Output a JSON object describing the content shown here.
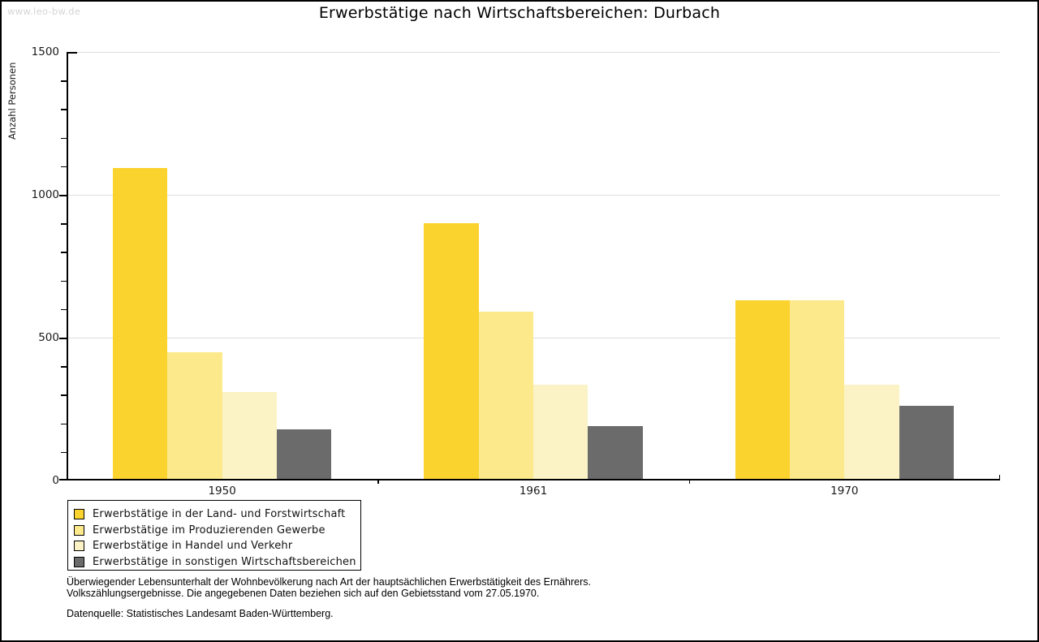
{
  "watermark": "www.leo-bw.de",
  "title": "Erwerbstätige nach Wirtschaftsbereichen: Durbach",
  "chart_data": {
    "type": "bar",
    "title": "Erwerbstätige nach Wirtschaftsbereichen: Durbach",
    "xlabel": "",
    "ylabel": "Anzahl Personen",
    "categories": [
      "1950",
      "1961",
      "1970"
    ],
    "series": [
      {
        "name": "Erwerbstätige in der Land- und Forstwirtschaft",
        "color": "#fbd32e",
        "values": [
          1095,
          900,
          630
        ]
      },
      {
        "name": "Erwerbstätige im Produzierenden Gewerbe",
        "color": "#fce98c",
        "values": [
          450,
          590,
          630
        ]
      },
      {
        "name": "Erwerbstätige in Handel und Verkehr",
        "color": "#fbf3c6",
        "values": [
          310,
          335,
          335
        ]
      },
      {
        "name": "Erwerbstätige in sonstigen Wirtschaftsbereichen",
        "color": "#6b6b6b",
        "values": [
          180,
          190,
          260
        ]
      }
    ],
    "ylim": [
      0,
      1500
    ],
    "y_major_ticks": [
      0,
      500,
      1000,
      1500
    ],
    "y_minor_step": 100,
    "grid": true,
    "gridline_color": "#dedede",
    "axis_color": "#000000",
    "legend_position": "bottom-left"
  },
  "footer": {
    "line1": "Überwiegender Lebensunterhalt der Wohnbevölkerung nach Art der hauptsächlichen Erwerbstätigkeit des Ernährers.",
    "line2": "Volkszählungsergebnisse. Die angegebenen Daten beziehen sich auf den Gebietsstand vom 27.05.1970.",
    "source": "Datenquelle: Statistisches Landesamt Baden-Württemberg."
  }
}
